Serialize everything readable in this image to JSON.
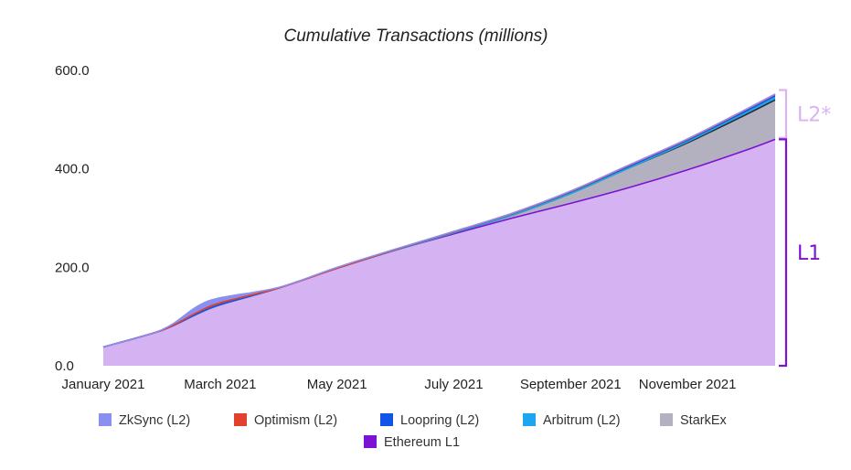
{
  "chart_data": {
    "type": "area",
    "title": "Cumulative Transactions (millions)",
    "xlabel": "",
    "ylabel": "",
    "ylim": [
      0,
      600
    ],
    "x_month_range": [
      0,
      11.5
    ],
    "x_ticks": [
      {
        "label": "January 2021",
        "month": 0
      },
      {
        "label": "March 2021",
        "month": 2
      },
      {
        "label": "May 2021",
        "month": 4
      },
      {
        "label": "July 2021",
        "month": 6
      },
      {
        "label": "September 2021",
        "month": 8
      },
      {
        "label": "November 2021",
        "month": 10
      }
    ],
    "y_ticks": [
      {
        "label": "0.0",
        "value": 0
      },
      {
        "label": "200.0",
        "value": 200
      },
      {
        "label": "400.0",
        "value": 400
      },
      {
        "label": "600.0",
        "value": 600
      }
    ],
    "x": [
      0,
      1,
      1.6,
      2,
      3,
      4,
      5,
      6,
      7,
      8,
      9,
      10,
      11,
      11.5
    ],
    "series": [
      {
        "name": "Ethereum L1",
        "color": "#7b12d4",
        "fill": "#d5b3f2",
        "values": [
          38,
          72,
          105,
          124,
          158,
          198,
          235,
          268,
          300,
          330,
          362,
          398,
          438,
          460
        ]
      },
      {
        "name": "StarkEx",
        "color": "#2b2b2b",
        "fill": "#b3b0c0",
        "values": [
          0,
          0,
          0,
          0,
          0,
          0,
          0,
          2,
          6,
          20,
          40,
          55,
          72,
          80
        ]
      },
      {
        "name": "Arbitrum (L2)",
        "color": "#1da6f0",
        "fill": "#1da6f0",
        "values": [
          0,
          0,
          0,
          0,
          0,
          0,
          0,
          0,
          0,
          0,
          0,
          2,
          4,
          5
        ]
      },
      {
        "name": "Loopring (L2)",
        "color": "#1155e8",
        "fill": "#1155e8",
        "values": [
          0,
          0,
          0,
          0,
          0,
          0,
          1,
          2,
          3,
          4,
          5,
          5,
          6,
          6
        ]
      },
      {
        "name": "Optimism (L2)",
        "color": "#e3412f",
        "fill": "#e3412f",
        "values": [
          0,
          0,
          3,
          4,
          0,
          0,
          0,
          0,
          0,
          0,
          0,
          0,
          0,
          0
        ]
      },
      {
        "name": "ZkSync (L2)",
        "color": "#8b90f0",
        "fill": "#8b90f0",
        "values": [
          0,
          1,
          12,
          10,
          1,
          2,
          1,
          1,
          1,
          1,
          1,
          1,
          1,
          1
        ]
      }
    ],
    "legend": [
      {
        "label": "ZkSync (L2)",
        "color": "#8b90f0"
      },
      {
        "label": "Optimism (L2)",
        "color": "#e3412f"
      },
      {
        "label": "Loopring (L2)",
        "color": "#1155e8"
      },
      {
        "label": "Arbitrum (L2)",
        "color": "#1da6f0"
      },
      {
        "label": "StarkEx",
        "color": "#b3b0c0"
      },
      {
        "label": "Ethereum L1",
        "color": "#7b12d4"
      }
    ],
    "legend_position": "bottom",
    "annotations": [
      {
        "label": "L2*",
        "color": "#d9b4f0",
        "range": [
          463,
          560
        ]
      },
      {
        "label": "L1",
        "color": "#7b12d4",
        "range": [
          0,
          460
        ]
      }
    ]
  }
}
